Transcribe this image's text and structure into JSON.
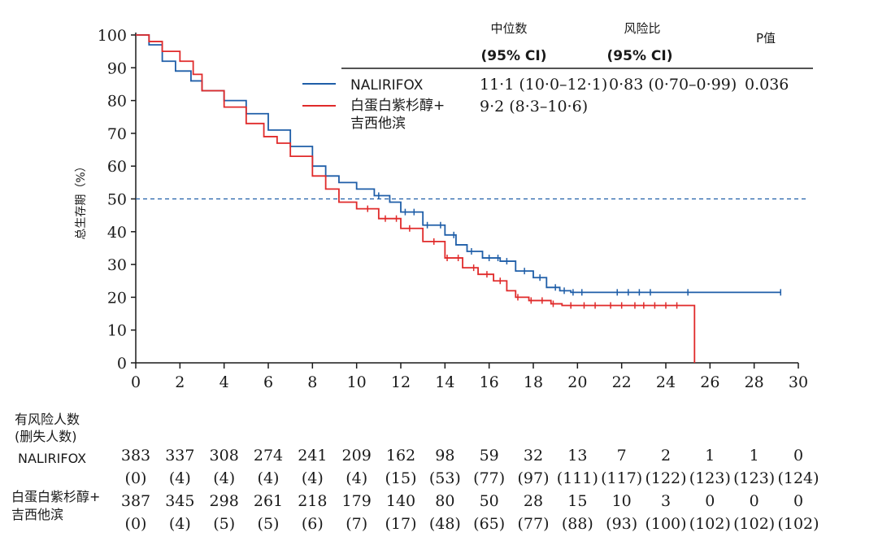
{
  "chart_data": {
    "type": "line",
    "subtype": "kaplan-meier",
    "ylabel": "总生存期（%）",
    "xlim": [
      0,
      30
    ],
    "ylim": [
      0,
      100
    ],
    "xticks": [
      0,
      2,
      4,
      6,
      8,
      10,
      12,
      14,
      16,
      18,
      20,
      22,
      24,
      26,
      28,
      30
    ],
    "yticks": [
      0,
      10,
      20,
      30,
      40,
      50,
      60,
      70,
      80,
      90,
      100
    ],
    "reference_line": 50,
    "table_headers": {
      "median_label": "中位数",
      "median_ci": "(95% CI)",
      "hr_label": "风险比",
      "hr_ci": "(95% CI)",
      "p_label": "P值"
    },
    "series": [
      {
        "name": "NALIRIFOX",
        "color": "#1f5ea8",
        "median": "11·1 (10·0–12·1)",
        "hazard_ratio": "0·83 (0·70–0·99)",
        "p_value": "0.036",
        "x": [
          0,
          0.6,
          1.2,
          1.8,
          2.5,
          3.0,
          4.0,
          5.0,
          6.0,
          7.0,
          8.0,
          8.6,
          9.2,
          10.0,
          10.8,
          11.5,
          12.0,
          13.0,
          14.0,
          14.5,
          15.0,
          15.7,
          16.5,
          17.2,
          18.0,
          18.6,
          19.2,
          19.7,
          29.2
        ],
        "y": [
          100,
          97,
          92,
          89,
          86,
          83,
          80,
          76,
          71,
          66,
          60,
          57,
          55,
          53,
          51,
          49,
          46,
          42,
          39,
          36,
          34,
          32,
          31,
          28,
          26,
          23,
          22,
          21.5,
          21.5
        ],
        "censor_x": [
          11.0,
          12.2,
          12.6,
          13.2,
          13.8,
          14.4,
          15.2,
          16.0,
          16.4,
          16.8,
          17.6,
          18.3,
          19.0,
          19.4,
          19.8,
          20.2,
          21.8,
          22.3,
          22.8,
          23.3,
          25.0,
          29.2
        ]
      },
      {
        "name": "白蛋白紫杉醇+吉西他滨",
        "name_line1": "白蛋白紫杉醇+",
        "name_line2": "吉西他滨",
        "color": "#e02a2a",
        "median": "9·2 (8·3–10·6)",
        "x": [
          0,
          0.6,
          1.2,
          2.0,
          2.6,
          3.0,
          4.0,
          5.0,
          5.8,
          6.4,
          7.0,
          8.0,
          8.6,
          9.2,
          10.0,
          11.0,
          12.0,
          13.0,
          14.0,
          14.8,
          15.5,
          16.2,
          16.8,
          17.2,
          17.8,
          18.4,
          18.8,
          19.3,
          25.3,
          25.3
        ],
        "y": [
          100,
          98,
          95,
          92,
          88,
          83,
          78,
          73,
          69,
          67,
          63,
          57,
          53,
          49,
          47,
          44,
          41,
          37,
          32,
          29,
          27,
          25,
          22,
          20,
          19,
          19,
          18,
          17.5,
          17.5,
          0
        ],
        "censor_x": [
          10.5,
          11.3,
          11.8,
          12.4,
          13.5,
          14.1,
          14.6,
          15.3,
          15.9,
          16.5,
          17.3,
          17.9,
          18.4,
          18.9,
          19.7,
          20.3,
          20.8,
          21.5,
          22.0,
          22.6,
          23.0,
          23.5,
          24.0,
          24.5
        ]
      }
    ]
  },
  "risk_table": {
    "title_line1": "有风险人数",
    "title_line2": "(删失人数)",
    "rows": [
      {
        "label": "NALIRIFOX",
        "at_risk": [
          "383",
          "337",
          "308",
          "274",
          "241",
          "209",
          "162",
          "98",
          "59",
          "32",
          "13",
          "7",
          "2",
          "1",
          "1",
          "0"
        ],
        "censored": [
          "(0)",
          "(4)",
          "(4)",
          "(4)",
          "(4)",
          "(4)",
          "(15)",
          "(53)",
          "(77)",
          "(97)",
          "(111)",
          "(117)",
          "(122)",
          "(123)",
          "(123)",
          "(124)"
        ]
      },
      {
        "label_line1": "白蛋白紫杉醇+",
        "label_line2": "吉西他滨",
        "at_risk": [
          "387",
          "345",
          "298",
          "261",
          "218",
          "179",
          "140",
          "80",
          "50",
          "28",
          "15",
          "10",
          "3",
          "0",
          "0",
          "0"
        ],
        "censored": [
          "(0)",
          "(4)",
          "(5)",
          "(5)",
          "(6)",
          "(7)",
          "(17)",
          "(48)",
          "(65)",
          "(77)",
          "(88)",
          "(93)",
          "(100)",
          "(102)",
          "(102)",
          "(102)"
        ]
      }
    ]
  }
}
